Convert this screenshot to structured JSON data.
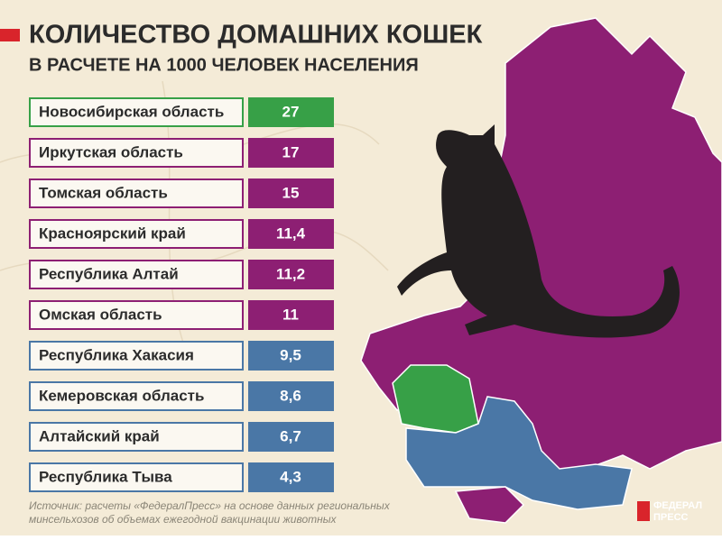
{
  "header": {
    "title": "КОЛИЧЕСТВО ДОМАШНИХ КОШЕК",
    "subtitle": "В РАСЧЕТЕ НА 1000 ЧЕЛОВЕК НАСЕЛЕНИЯ"
  },
  "table": {
    "rows": [
      {
        "region": "Новосибирская область",
        "value": "27",
        "color": "#37a047"
      },
      {
        "region": "Иркутская область",
        "value": "17",
        "color": "#8d1f73"
      },
      {
        "region": "Томская область",
        "value": "15",
        "color": "#8d1f73"
      },
      {
        "region": "Красноярский край",
        "value": "11,4",
        "color": "#8d1f73"
      },
      {
        "region": "Республика Алтай",
        "value": "11,2",
        "color": "#8d1f73"
      },
      {
        "region": "Омская область",
        "value": "11",
        "color": "#8d1f73"
      },
      {
        "region": "Республика Хакасия",
        "value": "9,5",
        "color": "#4a77a6"
      },
      {
        "region": "Кемеровская область",
        "value": "8,6",
        "color": "#4a77a6"
      },
      {
        "region": "Алтайский край",
        "value": "6,7",
        "color": "#4a77a6"
      },
      {
        "region": "Республика Тыва",
        "value": "4,3",
        "color": "#4a77a6"
      }
    ]
  },
  "footer": {
    "source_line1": "Источник: расчеты «ФедералПресс» на основе данных региональных",
    "source_line2": "минсельхозов об объемах ежегодной вакцинации животных",
    "logo_line1": "ФЕДЕРАЛ",
    "logo_line2": "ПРЕСС"
  }
}
